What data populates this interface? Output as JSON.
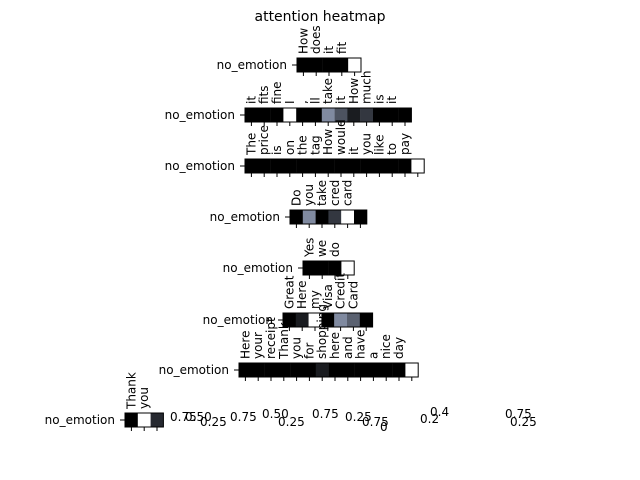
{
  "title": "attention heatmap",
  "chart_data": [
    {
      "type": "heatmap",
      "ylabel": "no_emotion",
      "categories": [
        "How",
        "does",
        "it",
        "fit",
        null
      ],
      "values": [
        0,
        0,
        0,
        0,
        1
      ]
    },
    {
      "type": "heatmap",
      "ylabel": "no_emotion",
      "categories": [
        "it",
        "fits",
        "fine",
        "I",
        ",",
        "ll",
        "take",
        "it",
        "How",
        "much",
        "is",
        "it",
        null
      ],
      "values": [
        0,
        0,
        0,
        1,
        0,
        0,
        0.5,
        0.3,
        0.1,
        0.2,
        0,
        0,
        0
      ]
    },
    {
      "type": "heatmap",
      "ylabel": "no_emotion",
      "categories": [
        "The",
        "price",
        "is",
        "on",
        "the",
        "tag",
        "How",
        "would",
        "it",
        "you",
        "like",
        "to",
        "pay",
        null
      ],
      "values": [
        0,
        0,
        0,
        0,
        0,
        0,
        0,
        0,
        0,
        0,
        0,
        0,
        0,
        1
      ]
    },
    {
      "type": "heatmap",
      "ylabel": "no_emotion",
      "categories": [
        "Do",
        "you",
        "take",
        "cred",
        "card",
        null
      ],
      "values": [
        0,
        0.5,
        0,
        0.2,
        1,
        0
      ]
    },
    {
      "type": "heatmap",
      "ylabel": "no_emotion",
      "categories": [
        "Yes",
        "we",
        "do",
        null
      ],
      "values": [
        0,
        0,
        0,
        1
      ]
    },
    {
      "type": "heatmap",
      "ylabel": "no_emotion",
      "categories": [
        "Great",
        "Here",
        "my",
        "Visa",
        "Credit",
        "Card",
        null
      ],
      "values": [
        0,
        0.1,
        1,
        0,
        0.5,
        0.35,
        0
      ]
    },
    {
      "type": "heatmap",
      "ylabel": "no_emotion",
      "categories": [
        "Here",
        "your",
        "receipt",
        "Thank",
        "you",
        "for",
        "shopping",
        "here",
        "and",
        "have",
        "a",
        "nice",
        "day",
        null
      ],
      "values": [
        0,
        0,
        0,
        0,
        0,
        0,
        0.1,
        0,
        0,
        0,
        0,
        0,
        0,
        1
      ]
    },
    {
      "type": "heatmap",
      "ylabel": "no_emotion",
      "categories": [
        "Thank",
        "you",
        null
      ],
      "values": [
        0,
        1,
        0.15
      ]
    }
  ],
  "colorbar_ticks": [
    0.75,
    {
      "value": 0.5,
      "label": "0.50"
    },
    0.25,
    0.75,
    {
      "value": 0.5,
      "label": "0.50"
    },
    0.25,
    0.75,
    0.25,
    0.75,
    0,
    0.4,
    0.2,
    0.75,
    0.25
  ]
}
